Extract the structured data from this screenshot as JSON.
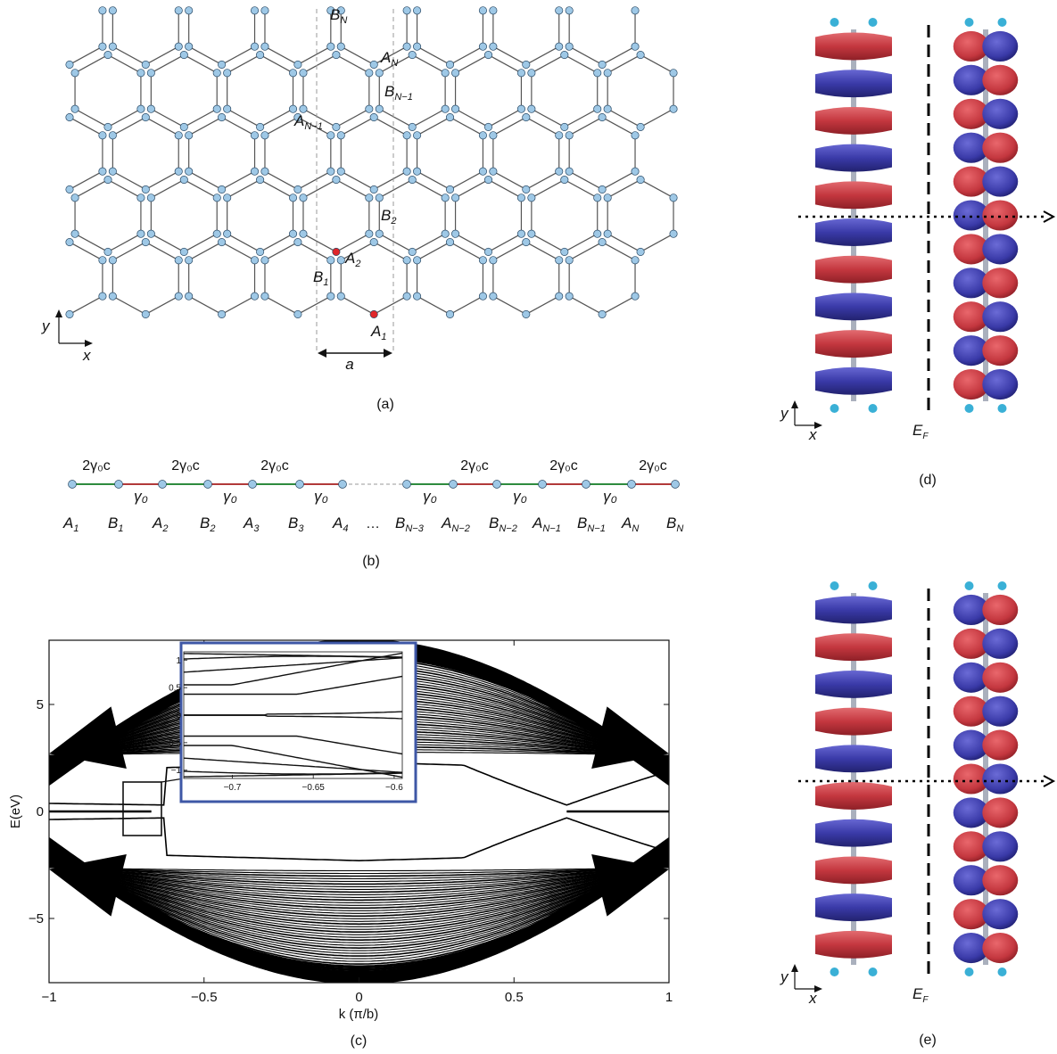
{
  "panel_labels": {
    "a": "(a)",
    "b": "(b)",
    "c": "(c)",
    "d": "(d)",
    "e": "(e)"
  },
  "panel_a": {
    "site_labels": {
      "BN": [
        "B",
        "N"
      ],
      "AN": [
        "A",
        "N"
      ],
      "BN1": [
        "B",
        "N−1"
      ],
      "AN1": [
        "A",
        "N−1"
      ],
      "B2": [
        "B",
        "2"
      ],
      "A2": [
        "A",
        "2"
      ],
      "B1": [
        "B",
        "1"
      ],
      "A1": [
        "A",
        "1"
      ]
    },
    "lattice_constant": "a",
    "axis_x": "x",
    "axis_y": "y",
    "colors": {
      "lattice_atom": "#9ec8e6",
      "site_A": "#e0262a",
      "site_B": "#2b3a9a",
      "bond": "#555555"
    }
  },
  "panel_b": {
    "coupling_label": "2γ₀c",
    "hopping_label": "γ₀",
    "ellipsis": "…",
    "sites": [
      [
        "A",
        "1"
      ],
      [
        "B",
        "1"
      ],
      [
        "A",
        "2"
      ],
      [
        "B",
        "2"
      ],
      [
        "A",
        "3"
      ],
      [
        "B",
        "3"
      ],
      [
        "A",
        "4"
      ],
      [
        "B",
        "N−3"
      ],
      [
        "A",
        "N−2"
      ],
      [
        "B",
        "N−2"
      ],
      [
        "A",
        "N−1"
      ],
      [
        "B",
        "N−1"
      ],
      [
        "A",
        "N"
      ],
      [
        "B",
        "N"
      ]
    ],
    "colors": {
      "coupling_bond": "#2e8b3e",
      "hopping_bond": "#b13a3a"
    }
  },
  "panel_c": {
    "xlabel": "k (π/b)",
    "ylabel": "E(eV)",
    "xticks": [
      "−1",
      "−0.5",
      "0",
      "0.5",
      "1"
    ],
    "yticks": [
      "5",
      "0",
      "−5"
    ],
    "inset_xticks": [
      "−0.7",
      "−0.65",
      "−0.6"
    ],
    "inset_yticks": [
      "1",
      "0.5",
      "0",
      "−0.5",
      "−1"
    ]
  },
  "chart_data": {
    "type": "line",
    "xlim": [
      -1,
      1
    ],
    "ylim": [
      -8,
      8
    ],
    "band_function": "E(k) = ± E_max cos(πk/2) with multiple sub-bands",
    "band_max_at_k0": 8.0,
    "band_value_at_k_edge": 2.7,
    "flat_band_energy": 0,
    "flat_band_range": [
      -1,
      -0.67
    ],
    "gap_closing_k": 0.67,
    "inset": {
      "xlim": [
        -0.73,
        -0.595
      ],
      "ylim": [
        -1.15,
        1.15
      ]
    }
  },
  "panels_de": {
    "ef_label": [
      "E",
      "F"
    ],
    "axis_x": "x",
    "axis_y": "y",
    "colors": {
      "positive": "#c4373f",
      "negative": "#3a3aa8",
      "hydrogen": "#3ab0d6",
      "carbon_bond": "#aab0bd"
    }
  }
}
